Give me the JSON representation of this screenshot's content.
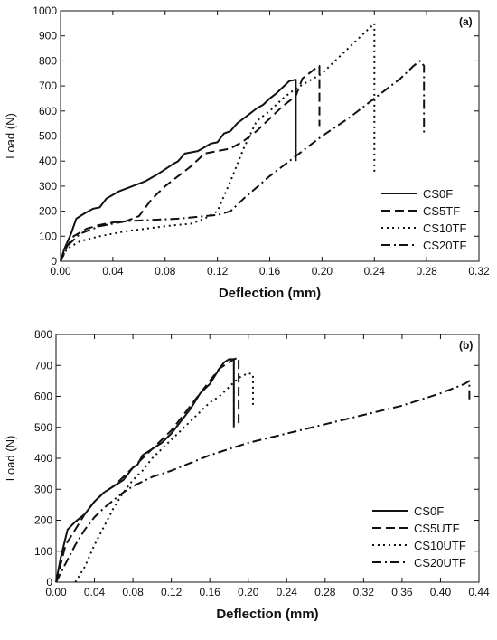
{
  "chart_data": [
    {
      "type": "line",
      "panel_label": "(a)",
      "xlabel": "Deflection (mm)",
      "ylabel": "Load (N)",
      "xlim": [
        0,
        0.32
      ],
      "ylim": [
        0,
        1000
      ],
      "xticks": [
        "0.00",
        "0.04",
        "0.08",
        "0.12",
        "0.16",
        "0.20",
        "0.24",
        "0.28",
        "0.32"
      ],
      "yticks": [
        "0",
        "100",
        "200",
        "300",
        "400",
        "500",
        "600",
        "700",
        "800",
        "900",
        "1000"
      ],
      "legend_position": "bottom-right",
      "grid": false,
      "series": [
        {
          "name": "CS0F",
          "dash": "solid",
          "points": [
            [
              0,
              0
            ],
            [
              0.003,
              50
            ],
            [
              0.008,
              110
            ],
            [
              0.012,
              170
            ],
            [
              0.018,
              190
            ],
            [
              0.025,
              210
            ],
            [
              0.03,
              215
            ],
            [
              0.035,
              250
            ],
            [
              0.045,
              280
            ],
            [
              0.055,
              300
            ],
            [
              0.065,
              320
            ],
            [
              0.075,
              350
            ],
            [
              0.085,
              385
            ],
            [
              0.09,
              400
            ],
            [
              0.095,
              430
            ],
            [
              0.105,
              440
            ],
            [
              0.11,
              455
            ],
            [
              0.115,
              470
            ],
            [
              0.12,
              475
            ],
            [
              0.125,
              510
            ],
            [
              0.13,
              520
            ],
            [
              0.135,
              550
            ],
            [
              0.14,
              570
            ],
            [
              0.145,
              590
            ],
            [
              0.15,
              610
            ],
            [
              0.155,
              625
            ],
            [
              0.16,
              650
            ],
            [
              0.165,
              670
            ],
            [
              0.17,
              695
            ],
            [
              0.175,
              720
            ],
            [
              0.18,
              725
            ],
            [
              0.18,
              400
            ]
          ]
        },
        {
          "name": "CS5TF",
          "dash": "dash",
          "points": [
            [
              0,
              0
            ],
            [
              0.005,
              60
            ],
            [
              0.01,
              100
            ],
            [
              0.02,
              130
            ],
            [
              0.03,
              145
            ],
            [
              0.04,
              155
            ],
            [
              0.05,
              160
            ],
            [
              0.06,
              180
            ],
            [
              0.07,
              250
            ],
            [
              0.08,
              300
            ],
            [
              0.09,
              340
            ],
            [
              0.1,
              380
            ],
            [
              0.11,
              430
            ],
            [
              0.12,
              440
            ],
            [
              0.13,
              450
            ],
            [
              0.14,
              480
            ],
            [
              0.15,
              520
            ],
            [
              0.16,
              570
            ],
            [
              0.17,
              620
            ],
            [
              0.18,
              660
            ],
            [
              0.185,
              730
            ],
            [
              0.19,
              750
            ],
            [
              0.195,
              770
            ],
            [
              0.198,
              780
            ],
            [
              0.198,
              540
            ]
          ]
        },
        {
          "name": "CS10TF",
          "dash": "dot",
          "points": [
            [
              0,
              0
            ],
            [
              0.005,
              50
            ],
            [
              0.015,
              80
            ],
            [
              0.03,
              100
            ],
            [
              0.05,
              120
            ],
            [
              0.08,
              140
            ],
            [
              0.1,
              150
            ],
            [
              0.11,
              170
            ],
            [
              0.12,
              200
            ],
            [
              0.13,
              320
            ],
            [
              0.14,
              450
            ],
            [
              0.15,
              560
            ],
            [
              0.16,
              600
            ],
            [
              0.17,
              650
            ],
            [
              0.18,
              690
            ],
            [
              0.19,
              720
            ],
            [
              0.2,
              750
            ],
            [
              0.21,
              800
            ],
            [
              0.22,
              850
            ],
            [
              0.23,
              900
            ],
            [
              0.24,
              950
            ],
            [
              0.24,
              350
            ]
          ]
        },
        {
          "name": "CS20TF",
          "dash": "dashdot",
          "points": [
            [
              0,
              0
            ],
            [
              0.005,
              60
            ],
            [
              0.015,
              110
            ],
            [
              0.03,
              140
            ],
            [
              0.05,
              160
            ],
            [
              0.07,
              165
            ],
            [
              0.09,
              170
            ],
            [
              0.11,
              180
            ],
            [
              0.12,
              185
            ],
            [
              0.13,
              200
            ],
            [
              0.14,
              250
            ],
            [
              0.16,
              340
            ],
            [
              0.18,
              420
            ],
            [
              0.2,
              500
            ],
            [
              0.22,
              570
            ],
            [
              0.24,
              650
            ],
            [
              0.26,
              730
            ],
            [
              0.27,
              780
            ],
            [
              0.275,
              800
            ],
            [
              0.278,
              780
            ],
            [
              0.278,
              500
            ]
          ]
        }
      ]
    },
    {
      "type": "line",
      "panel_label": "(b)",
      "xlabel": "Deflection (mm)",
      "ylabel": "Load (N)",
      "xlim": [
        0,
        0.44
      ],
      "ylim": [
        0,
        800
      ],
      "xticks": [
        "0.00",
        "0.04",
        "0.08",
        "0.12",
        "0.16",
        "0.20",
        "0.24",
        "0.28",
        "0.32",
        "0.36",
        "0.40",
        "0.44"
      ],
      "yticks": [
        "0",
        "100",
        "200",
        "300",
        "400",
        "500",
        "600",
        "700",
        "800"
      ],
      "legend_position": "bottom-right",
      "grid": false,
      "series": [
        {
          "name": "CS0F",
          "dash": "solid",
          "points": [
            [
              0,
              0
            ],
            [
              0.005,
              80
            ],
            [
              0.012,
              170
            ],
            [
              0.02,
              195
            ],
            [
              0.03,
              220
            ],
            [
              0.04,
              260
            ],
            [
              0.05,
              290
            ],
            [
              0.06,
              310
            ],
            [
              0.07,
              330
            ],
            [
              0.08,
              370
            ],
            [
              0.085,
              380
            ],
            [
              0.09,
              410
            ],
            [
              0.1,
              430
            ],
            [
              0.11,
              450
            ],
            [
              0.12,
              480
            ],
            [
              0.13,
              520
            ],
            [
              0.14,
              560
            ],
            [
              0.15,
              610
            ],
            [
              0.16,
              640
            ],
            [
              0.17,
              690
            ],
            [
              0.175,
              710
            ],
            [
              0.18,
              720
            ],
            [
              0.185,
              720
            ],
            [
              0.185,
              500
            ]
          ]
        },
        {
          "name": "CS5UTF",
          "dash": "dash",
          "points": [
            [
              0,
              0
            ],
            [
              0.005,
              60
            ],
            [
              0.01,
              120
            ],
            [
              0.02,
              170
            ],
            [
              0.03,
              220
            ],
            [
              0.04,
              260
            ],
            [
              0.05,
              290
            ],
            [
              0.06,
              310
            ],
            [
              0.07,
              340
            ],
            [
              0.08,
              370
            ],
            [
              0.09,
              400
            ],
            [
              0.1,
              430
            ],
            [
              0.11,
              460
            ],
            [
              0.12,
              490
            ],
            [
              0.13,
              530
            ],
            [
              0.14,
              570
            ],
            [
              0.15,
              610
            ],
            [
              0.16,
              650
            ],
            [
              0.17,
              690
            ],
            [
              0.18,
              710
            ],
            [
              0.185,
              720
            ],
            [
              0.19,
              725
            ],
            [
              0.19,
              500
            ]
          ]
        },
        {
          "name": "CS10UTF",
          "dash": "dot",
          "points": [
            [
              0.02,
              0
            ],
            [
              0.03,
              50
            ],
            [
              0.04,
              120
            ],
            [
              0.05,
              180
            ],
            [
              0.06,
              240
            ],
            [
              0.07,
              290
            ],
            [
              0.08,
              330
            ],
            [
              0.09,
              360
            ],
            [
              0.1,
              400
            ],
            [
              0.11,
              430
            ],
            [
              0.12,
              460
            ],
            [
              0.13,
              490
            ],
            [
              0.14,
              520
            ],
            [
              0.15,
              550
            ],
            [
              0.16,
              580
            ],
            [
              0.17,
              600
            ],
            [
              0.18,
              630
            ],
            [
              0.19,
              660
            ],
            [
              0.2,
              675
            ],
            [
              0.205,
              670
            ],
            [
              0.205,
              570
            ]
          ]
        },
        {
          "name": "CS20UTF",
          "dash": "dashdot",
          "points": [
            [
              0,
              0
            ],
            [
              0.01,
              60
            ],
            [
              0.02,
              120
            ],
            [
              0.03,
              170
            ],
            [
              0.04,
              210
            ],
            [
              0.05,
              240
            ],
            [
              0.06,
              265
            ],
            [
              0.07,
              290
            ],
            [
              0.08,
              310
            ],
            [
              0.1,
              340
            ],
            [
              0.12,
              360
            ],
            [
              0.14,
              385
            ],
            [
              0.16,
              410
            ],
            [
              0.18,
              430
            ],
            [
              0.2,
              450
            ],
            [
              0.24,
              480
            ],
            [
              0.28,
              510
            ],
            [
              0.32,
              540
            ],
            [
              0.36,
              570
            ],
            [
              0.4,
              610
            ],
            [
              0.425,
              640
            ],
            [
              0.43,
              650
            ],
            [
              0.43,
              590
            ]
          ]
        }
      ]
    }
  ]
}
